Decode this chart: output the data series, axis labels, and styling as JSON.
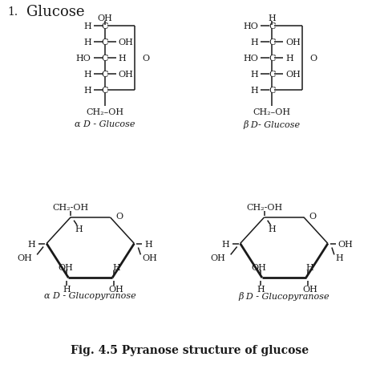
{
  "title": "Fig. 4.5 Pyranose structure of glucose",
  "alpha_glucose_label": "α D - Glucose",
  "beta_glucose_label": "β D- Glucose",
  "alpha_pyranose_label": "α D - Glucopyranose",
  "beta_pyranose_label": "β D - Glucopyranose",
  "bg_color": "#ffffff",
  "line_color": "#1a1a1a",
  "font_size": 8,
  "title_font_size": 9
}
